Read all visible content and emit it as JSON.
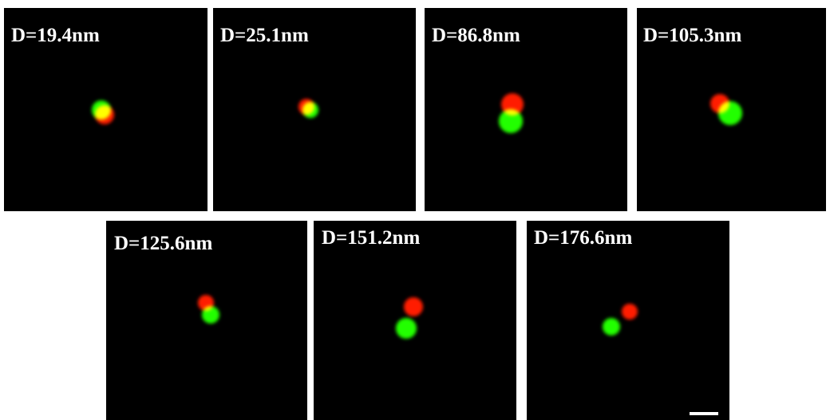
{
  "panels": [
    {
      "label": "D=19.4nm"
    },
    {
      "label": "D=25.1nm"
    },
    {
      "label": "D=86.8nm"
    },
    {
      "label": "D=105.3nm"
    },
    {
      "label": "D=125.6nm"
    },
    {
      "label": "D=151.2nm"
    },
    {
      "label": "D=176.6nm"
    }
  ]
}
